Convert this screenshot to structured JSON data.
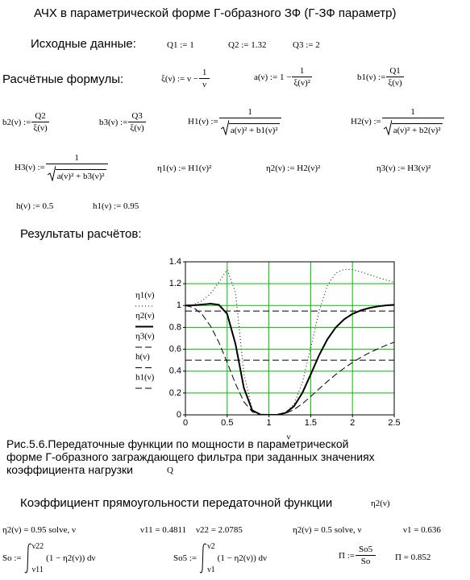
{
  "title": "АЧХ в параметрической форме Г-образного ЗФ (Г-ЗФ параметр)",
  "initial": {
    "label": "Исходные данные:",
    "items": [
      "Q1 := 1",
      "Q2 := 1.32",
      "Q3 := 2"
    ]
  },
  "formulas_label": "Расчётные формулы:",
  "formulas": [
    {
      "lhs": "ξ(ν) := ν −",
      "num": "1",
      "den": "ν"
    },
    {
      "lhs": "a(ν) := 1 −",
      "num": "1",
      "den": "ξ(ν)²"
    },
    {
      "lhs": "b1(ν) :=",
      "num": "Q1",
      "den": "ξ(ν)"
    },
    {
      "lhs": "b2(ν) :=",
      "num": "Q2",
      "den": "ξ(ν)"
    },
    {
      "lhs": "b3(ν) :=",
      "num": "Q3",
      "den": "ξ(ν)"
    },
    {
      "lhs": "H1(ν) :=",
      "num": "1",
      "den": "a(ν)² + b1(ν)²"
    },
    {
      "lhs": "H2(ν) :=",
      "num": "1",
      "den": "a(ν)² + b2(ν)²"
    },
    {
      "lhs": "H3(ν) :=",
      "num": "1",
      "den": "a(ν)² + b3(ν)²"
    },
    {
      "lhs": "η1(ν) := H1(ν)²"
    },
    {
      "lhs": "η2(ν) := H2(ν)²"
    },
    {
      "lhs": "η3(ν) := H3(ν)²"
    },
    {
      "lhs": "h(ν) := 0.5"
    },
    {
      "lhs": "h1(ν) := 0.95"
    }
  ],
  "results_label": "Результаты расчётов:",
  "chart_data": {
    "type": "line",
    "x_label": "ν",
    "x": [
      0,
      0.1,
      0.2,
      0.3,
      0.4,
      0.5,
      0.6,
      0.7,
      0.8,
      0.9,
      1.0,
      1.1,
      1.2,
      1.3,
      1.4,
      1.5,
      1.6,
      1.7,
      1.8,
      1.9,
      2.0,
      2.1,
      2.2,
      2.3,
      2.4,
      2.5
    ],
    "xlim": [
      0,
      2.5
    ],
    "xticks": [
      0,
      0.5,
      1,
      1.5,
      2,
      2.5
    ],
    "ylim": [
      0,
      1.4
    ],
    "yticks": [
      0,
      0.2,
      0.4,
      0.6,
      0.8,
      1,
      1.2,
      1.4
    ],
    "grid": true,
    "grid_color": "#00c000",
    "series": [
      {
        "name": "η1(ν)",
        "color": "#000000",
        "style": "dotted",
        "width": 1,
        "values": [
          1,
          1.0102,
          1.0433,
          1.1073,
          1.2126,
          1.3279,
          1.1191,
          0.3752,
          0.0489,
          0.0021,
          0,
          0.0014,
          0.0205,
          0.0995,
          0.2944,
          0.6121,
          0.9482,
          1.1827,
          1.2966,
          1.3317,
          1.3279,
          1.3079,
          1.2829,
          1.2576,
          1.2339,
          1.2126
        ]
      },
      {
        "name": "η2(ν)",
        "color": "#000000",
        "style": "solid",
        "width": 2,
        "values": [
          1,
          1.0025,
          1.0094,
          1.0164,
          1.007,
          0.9233,
          0.6468,
          0.2461,
          0.0415,
          0.002,
          0,
          0.0013,
          0.0184,
          0.0788,
          0.201,
          0.37,
          0.5448,
          0.6915,
          0.7996,
          0.8739,
          0.9233,
          0.9559,
          0.9773,
          0.9915,
          1.0009,
          1.007
        ]
      },
      {
        "name": "η3(ν)",
        "color": "#000000",
        "style": "dashed",
        "width": 1,
        "values": [
          1,
          0.9799,
          0.9185,
          0.8136,
          0.6645,
          0.4793,
          0.2833,
          0.1202,
          0.0284,
          0.0018,
          0,
          0.0012,
          0.014,
          0.0483,
          0.1023,
          0.168,
          0.2375,
          0.3056,
          0.3692,
          0.4272,
          0.4793,
          0.5257,
          0.5668,
          0.6033,
          0.6357,
          0.6645
        ]
      },
      {
        "name": "h(ν)",
        "color": "#000000",
        "style": "dashed",
        "width": 1,
        "x": [
          0,
          2.5
        ],
        "values": [
          0.5,
          0.5
        ]
      },
      {
        "name": "h1(ν)",
        "color": "#000000",
        "style": "dashed",
        "width": 1,
        "x": [
          0,
          2.5
        ],
        "values": [
          0.95,
          0.95
        ]
      }
    ]
  },
  "caption": [
    "Рис.5.6.Передаточные функции по мощности в параметрической",
    "форме Г-образного заграждающего фильтра при заданных значениях",
    "коэффициента нагрузки"
  ],
  "caption_symbol": "Q",
  "rect": {
    "label": "Коэффициент прямоугольности передаточной функции",
    "function": "η2(ν)",
    "solves": [
      "η2(ν) = 0.95 solve, ν",
      "ν11 = 0.4811",
      "ν22 = 2.0785",
      "η2(ν) = 0.5 solve, ν",
      "ν1 = 0.636"
    ],
    "integrals": [
      {
        "lhs": "So :=",
        "upper": "ν22",
        "lower": "ν11",
        "integrand": "(1 − η2(ν)) dν"
      },
      {
        "lhs": "So5 :=",
        "upper": "ν2",
        "lower": "ν1",
        "integrand": "(1 − η2(ν)) dν"
      }
    ],
    "ratio": {
      "lhs": "Π :=",
      "num": "So5",
      "den": "So"
    },
    "result": "Π = 0.852"
  }
}
